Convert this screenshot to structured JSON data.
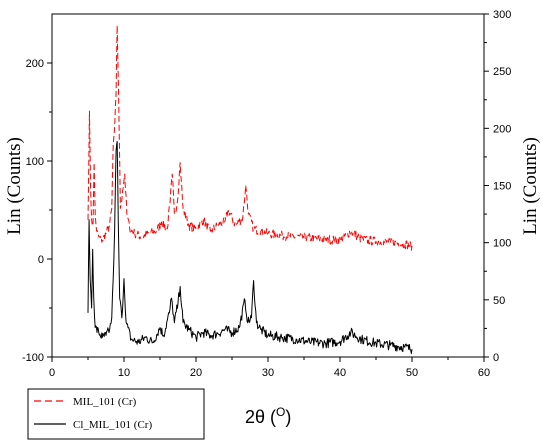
{
  "chart_data": {
    "type": "line",
    "xlabel": "2θ (",
    "xlabel_superscript": "O",
    "ylabel_left": "Lin (Counts)",
    "ylabel_right": "Lin (Counts)",
    "xlim": [
      0,
      60
    ],
    "ylim_left": [
      -100,
      250
    ],
    "ylim_right": [
      0,
      300
    ],
    "x_ticks": [
      "0",
      "10",
      "20",
      "30",
      "40",
      "50",
      "60"
    ],
    "y_left_ticks": [
      "-100",
      "0",
      "100",
      "200"
    ],
    "y_right_ticks": [
      "0",
      "50",
      "100",
      "150",
      "200",
      "250",
      "300"
    ],
    "legend_position": "bottom-left-outside",
    "series": [
      {
        "name": "MIL_101 (Cr)",
        "axis": "right",
        "color": "#ff0000",
        "dash": "dashed",
        "points": [
          [
            5.0,
            120
          ],
          [
            5.2,
            215
          ],
          [
            5.35,
            150
          ],
          [
            5.5,
            120
          ],
          [
            5.7,
            115
          ],
          [
            5.85,
            170
          ],
          [
            6.0,
            125
          ],
          [
            6.2,
            110
          ],
          [
            6.5,
            105
          ],
          [
            7.0,
            102
          ],
          [
            7.5,
            108
          ],
          [
            8.0,
            115
          ],
          [
            8.3,
            130
          ],
          [
            8.5,
            185
          ],
          [
            8.7,
            200
          ],
          [
            8.9,
            230
          ],
          [
            9.05,
            290
          ],
          [
            9.25,
            230
          ],
          [
            9.5,
            130
          ],
          [
            9.8,
            145
          ],
          [
            10.1,
            160
          ],
          [
            10.4,
            125
          ],
          [
            10.8,
            112
          ],
          [
            11.5,
            108
          ],
          [
            12.5,
            105
          ],
          [
            13.5,
            108
          ],
          [
            14.5,
            110
          ],
          [
            15.2,
            118
          ],
          [
            16.0,
            112
          ],
          [
            16.4,
            135
          ],
          [
            16.7,
            160
          ],
          [
            17.0,
            125
          ],
          [
            17.4,
            135
          ],
          [
            17.8,
            170
          ],
          [
            18.2,
            130
          ],
          [
            19.0,
            115
          ],
          [
            20.0,
            112
          ],
          [
            21.0,
            120
          ],
          [
            22.0,
            110
          ],
          [
            23.0,
            115
          ],
          [
            24.0,
            118
          ],
          [
            24.5,
            128
          ],
          [
            25.5,
            115
          ],
          [
            26.5,
            122
          ],
          [
            26.9,
            150
          ],
          [
            27.3,
            125
          ],
          [
            28.0,
            112
          ],
          [
            29.0,
            110
          ],
          [
            30.0,
            108
          ],
          [
            32.0,
            106
          ],
          [
            34.0,
            105
          ],
          [
            36.0,
            104
          ],
          [
            38.0,
            103
          ],
          [
            40.0,
            102
          ],
          [
            41.5,
            110
          ],
          [
            43.0,
            103
          ],
          [
            45.0,
            101
          ],
          [
            47.0,
            100
          ],
          [
            49.0,
            99
          ],
          [
            50.0,
            97
          ]
        ]
      },
      {
        "name": "Cl_MIL_101 (Cr)",
        "axis": "left",
        "color": "#000000",
        "dash": "solid",
        "points": [
          [
            5.0,
            -55
          ],
          [
            5.15,
            40
          ],
          [
            5.3,
            -20
          ],
          [
            5.5,
            -50
          ],
          [
            5.65,
            10
          ],
          [
            5.8,
            -40
          ],
          [
            6.0,
            -70
          ],
          [
            6.5,
            -75
          ],
          [
            7.0,
            -80
          ],
          [
            7.5,
            -78
          ],
          [
            8.0,
            -72
          ],
          [
            8.3,
            -60
          ],
          [
            8.5,
            -20
          ],
          [
            8.7,
            30
          ],
          [
            8.9,
            110
          ],
          [
            9.05,
            120
          ],
          [
            9.2,
            40
          ],
          [
            9.4,
            -40
          ],
          [
            9.7,
            -60
          ],
          [
            10.0,
            -20
          ],
          [
            10.3,
            -65
          ],
          [
            11.0,
            -82
          ],
          [
            12.0,
            -85
          ],
          [
            13.0,
            -80
          ],
          [
            14.0,
            -85
          ],
          [
            15.0,
            -70
          ],
          [
            15.5,
            -78
          ],
          [
            16.3,
            -55
          ],
          [
            16.6,
            -40
          ],
          [
            17.0,
            -65
          ],
          [
            17.5,
            -45
          ],
          [
            17.8,
            -28
          ],
          [
            18.2,
            -65
          ],
          [
            19.0,
            -72
          ],
          [
            20.0,
            -80
          ],
          [
            21.0,
            -75
          ],
          [
            22.0,
            -78
          ],
          [
            23.0,
            -76
          ],
          [
            24.0,
            -72
          ],
          [
            25.0,
            -75
          ],
          [
            26.0,
            -70
          ],
          [
            26.8,
            -42
          ],
          [
            27.2,
            -65
          ],
          [
            27.7,
            -60
          ],
          [
            28.0,
            -22
          ],
          [
            28.4,
            -65
          ],
          [
            29.0,
            -72
          ],
          [
            30.0,
            -78
          ],
          [
            32.0,
            -80
          ],
          [
            34.0,
            -82
          ],
          [
            36.0,
            -85
          ],
          [
            38.0,
            -86
          ],
          [
            40.0,
            -84
          ],
          [
            41.5,
            -75
          ],
          [
            43.0,
            -82
          ],
          [
            45.0,
            -86
          ],
          [
            47.0,
            -88
          ],
          [
            49.0,
            -90
          ],
          [
            50.0,
            -92
          ]
        ]
      }
    ]
  }
}
